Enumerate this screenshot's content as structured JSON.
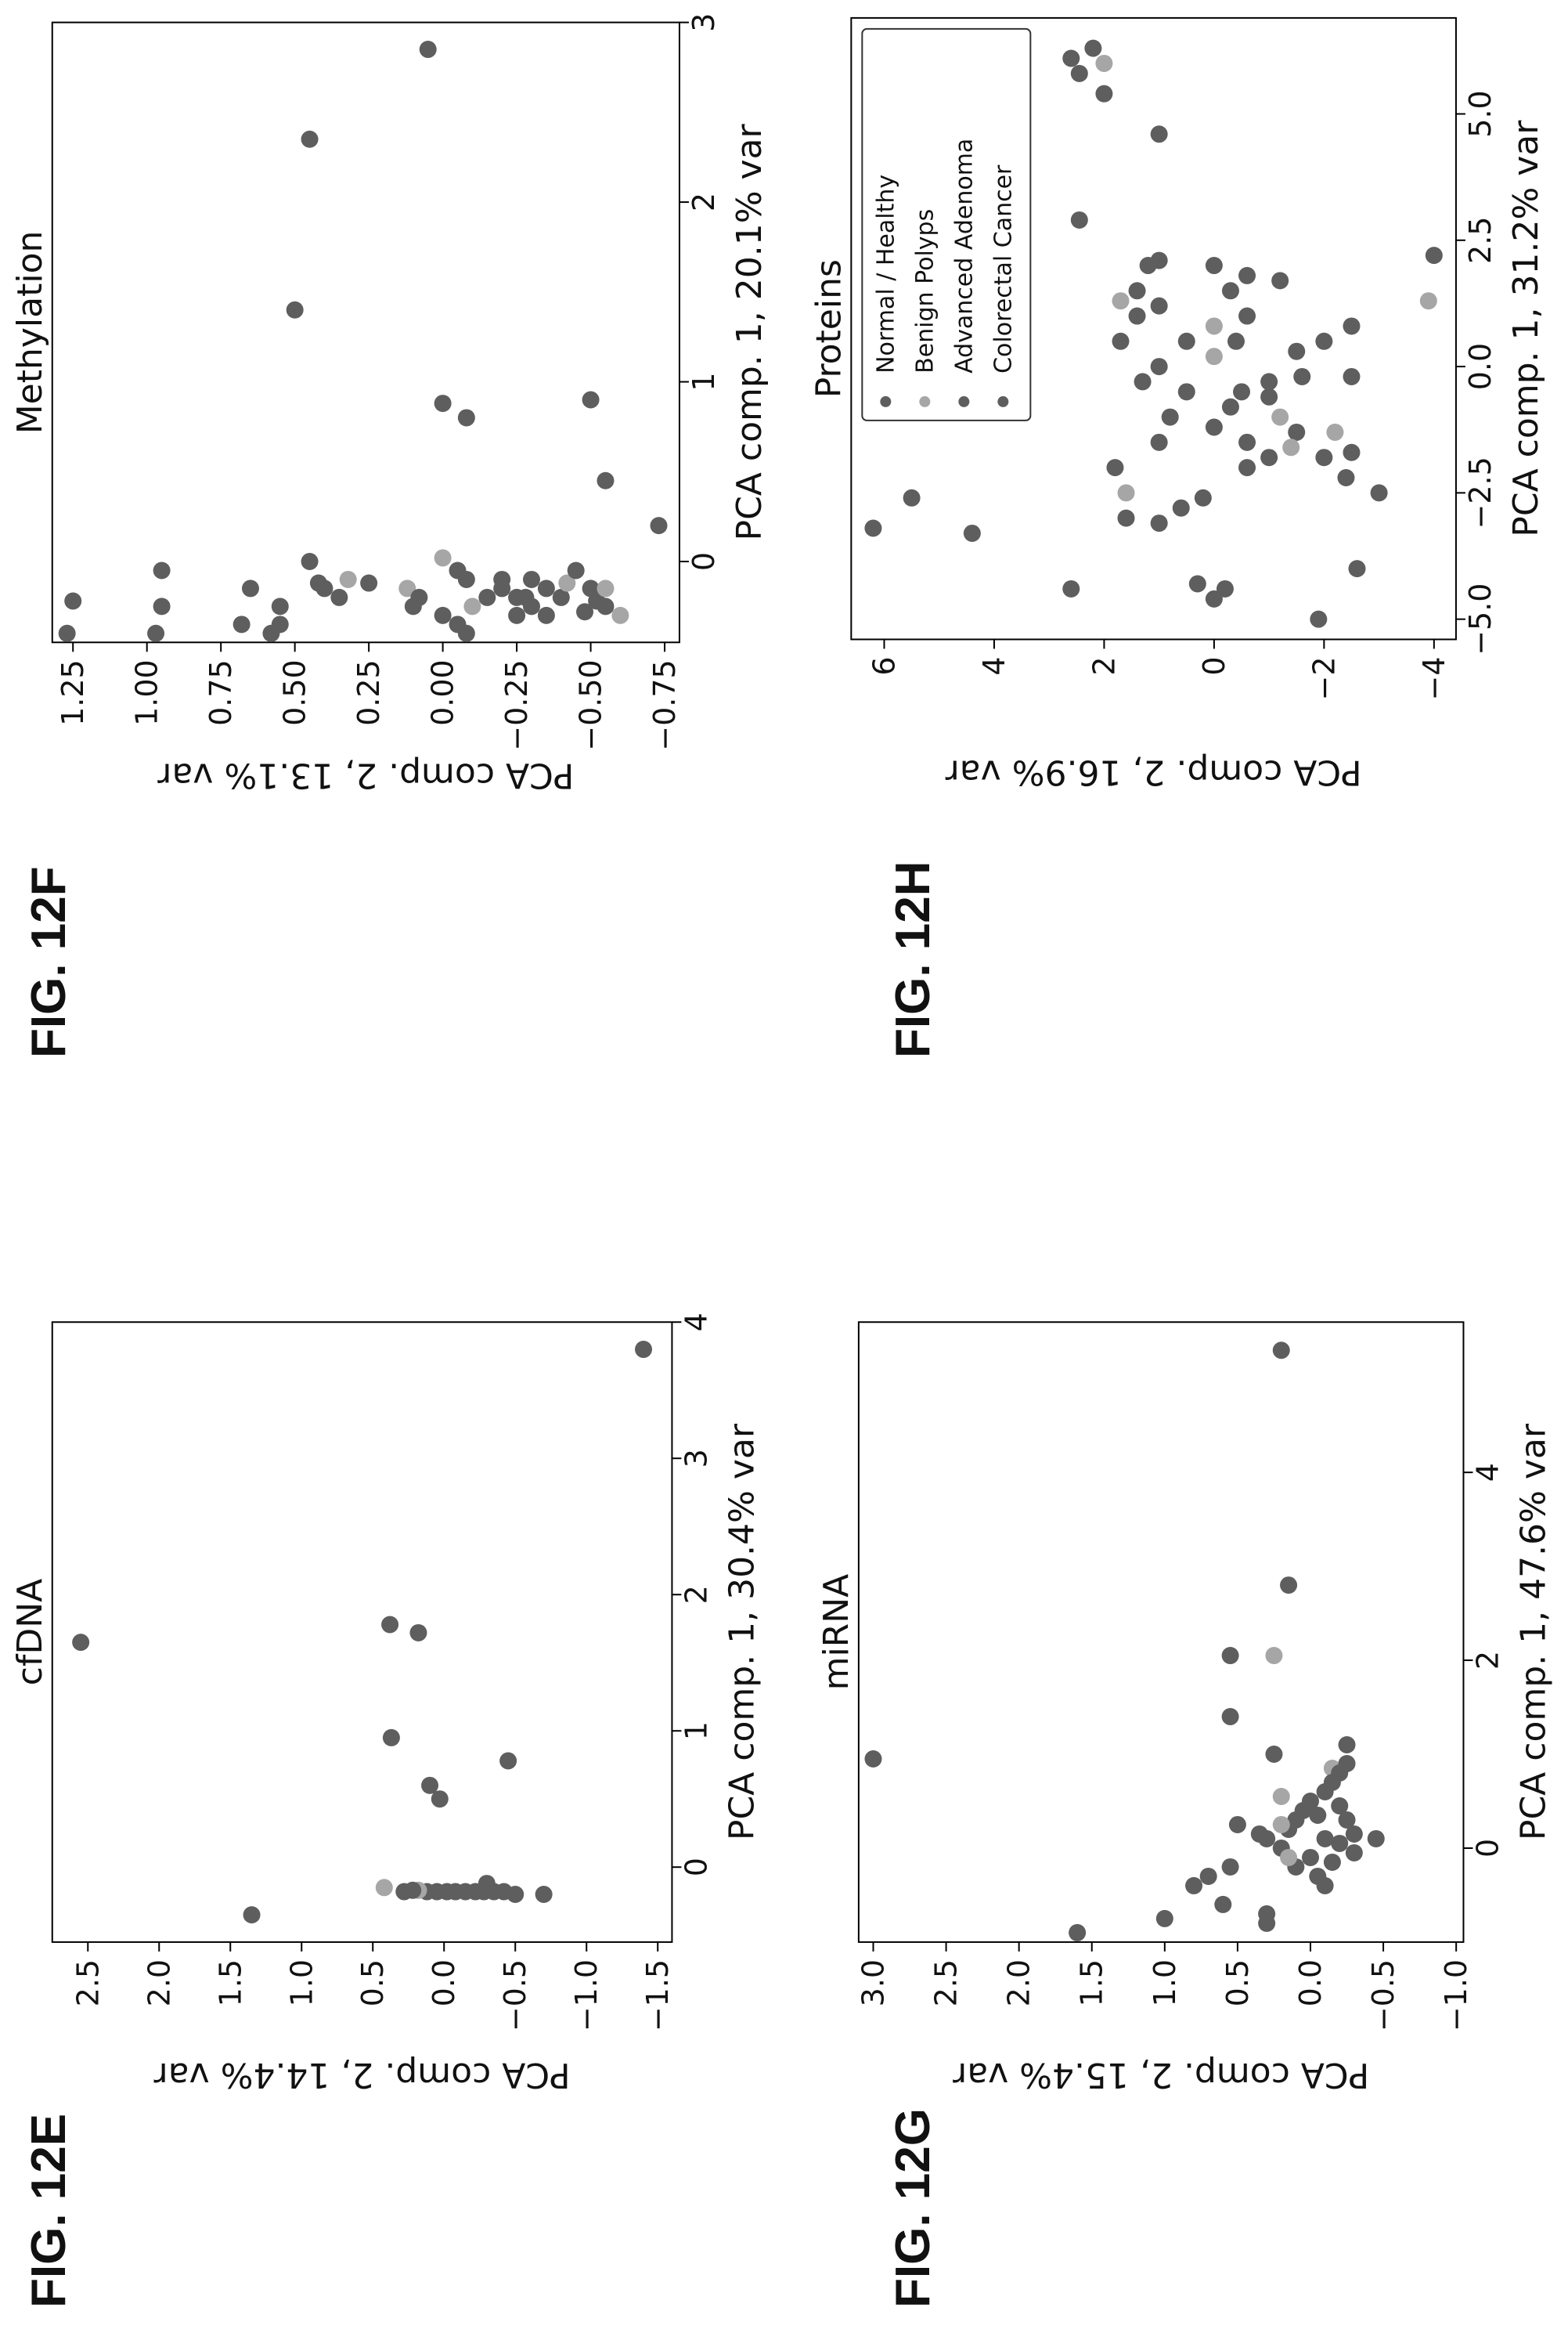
{
  "chart_data": [
    {
      "type": "scatter",
      "figure_label": "FIG. 12E",
      "title": "cfDNA",
      "xlabel": "PCA comp. 1, 30.4% var",
      "ylabel": "PCA comp. 2, 14.4% var",
      "xlim": [
        -0.55,
        4.0
      ],
      "ylim": [
        -1.6,
        2.75
      ],
      "xticks": [
        0,
        1,
        2,
        3,
        4
      ],
      "yticks": [
        2.5,
        2.0,
        1.5,
        1.0,
        0.5,
        0.0,
        -0.5,
        -1.0,
        -1.5
      ],
      "ytick_labels": [
        "2.5",
        "2.0",
        "1.5",
        "1.0",
        "0.5",
        "0.0",
        "−0.5",
        "−1.0",
        "−1.5"
      ],
      "xtick_labels": [
        "0",
        "1",
        "2",
        "3",
        "4"
      ],
      "grid": false,
      "points": [
        {
          "x": 1.65,
          "y": 2.55,
          "c": "dark"
        },
        {
          "x": 3.8,
          "y": -1.4,
          "c": "dark"
        },
        {
          "x": -0.35,
          "y": 1.35,
          "c": "dark"
        },
        {
          "x": 1.78,
          "y": 0.38,
          "c": "dark"
        },
        {
          "x": 1.72,
          "y": 0.18,
          "c": "dark"
        },
        {
          "x": 0.95,
          "y": 0.37,
          "c": "dark"
        },
        {
          "x": 0.6,
          "y": 0.1,
          "c": "dark"
        },
        {
          "x": 0.5,
          "y": 0.03,
          "c": "dark"
        },
        {
          "x": 0.78,
          "y": -0.45,
          "c": "dark"
        },
        {
          "x": -0.15,
          "y": 0.42,
          "c": "light"
        },
        {
          "x": -0.18,
          "y": 0.28,
          "c": "dark"
        },
        {
          "x": -0.12,
          "y": -0.3,
          "c": "dark"
        },
        {
          "x": -0.2,
          "y": -0.5,
          "c": "dark"
        },
        {
          "x": -0.2,
          "y": -0.7,
          "c": "dark"
        },
        {
          "x": -0.18,
          "y": 0.12,
          "c": "dark"
        },
        {
          "x": -0.18,
          "y": 0.05,
          "c": "dark"
        },
        {
          "x": -0.18,
          "y": -0.02,
          "c": "dark"
        },
        {
          "x": -0.18,
          "y": -0.08,
          "c": "dark"
        },
        {
          "x": -0.18,
          "y": -0.15,
          "c": "dark"
        },
        {
          "x": -0.18,
          "y": -0.22,
          "c": "dark"
        },
        {
          "x": -0.18,
          "y": -0.28,
          "c": "dark"
        },
        {
          "x": -0.17,
          "y": 0.18,
          "c": "light"
        },
        {
          "x": -0.18,
          "y": -0.35,
          "c": "dark"
        },
        {
          "x": -0.18,
          "y": -0.42,
          "c": "dark"
        },
        {
          "x": -0.17,
          "y": 0.22,
          "c": "dark"
        }
      ]
    },
    {
      "type": "scatter",
      "figure_label": "FIG. 12F",
      "title": "Methylation",
      "xlabel": "PCA comp. 1, 20.1% var",
      "ylabel": "PCA comp. 2, 13.1% var",
      "xlim": [
        -0.45,
        3.0
      ],
      "ylim": [
        -0.8,
        1.32
      ],
      "xticks": [
        0,
        1,
        2,
        3
      ],
      "yticks": [
        1.25,
        1.0,
        0.75,
        0.5,
        0.25,
        0.0,
        -0.25,
        -0.5,
        -0.75
      ],
      "ytick_labels": [
        "1.25",
        "1.00",
        "0.75",
        "0.50",
        "0.25",
        "0.00",
        "−0.25",
        "−0.50",
        "−0.75"
      ],
      "xtick_labels": [
        "0",
        "1",
        "2",
        "3"
      ],
      "grid": false,
      "points": [
        {
          "x": 2.85,
          "y": 0.05,
          "c": "dark"
        },
        {
          "x": 2.35,
          "y": 0.45,
          "c": "dark"
        },
        {
          "x": 1.4,
          "y": 0.5,
          "c": "dark"
        },
        {
          "x": 0.88,
          "y": 0.0,
          "c": "dark"
        },
        {
          "x": 0.8,
          "y": -0.08,
          "c": "dark"
        },
        {
          "x": 0.9,
          "y": -0.5,
          "c": "dark"
        },
        {
          "x": 0.45,
          "y": -0.55,
          "c": "dark"
        },
        {
          "x": 0.2,
          "y": -0.73,
          "c": "dark"
        },
        {
          "x": -0.22,
          "y": 1.25,
          "c": "dark"
        },
        {
          "x": -0.4,
          "y": 1.27,
          "c": "dark"
        },
        {
          "x": -0.05,
          "y": 0.95,
          "c": "dark"
        },
        {
          "x": -0.25,
          "y": 0.95,
          "c": "dark"
        },
        {
          "x": -0.4,
          "y": 0.97,
          "c": "dark"
        },
        {
          "x": -0.35,
          "y": 0.68,
          "c": "dark"
        },
        {
          "x": -0.15,
          "y": 0.65,
          "c": "dark"
        },
        {
          "x": -0.4,
          "y": 0.58,
          "c": "dark"
        },
        {
          "x": -0.35,
          "y": 0.55,
          "c": "dark"
        },
        {
          "x": -0.25,
          "y": 0.55,
          "c": "dark"
        },
        {
          "x": 0.0,
          "y": 0.45,
          "c": "dark"
        },
        {
          "x": -0.12,
          "y": 0.42,
          "c": "dark"
        },
        {
          "x": -0.15,
          "y": 0.4,
          "c": "dark"
        },
        {
          "x": -0.2,
          "y": 0.35,
          "c": "dark"
        },
        {
          "x": -0.1,
          "y": 0.32,
          "c": "light"
        },
        {
          "x": -0.12,
          "y": 0.25,
          "c": "dark"
        },
        {
          "x": -0.15,
          "y": 0.12,
          "c": "light"
        },
        {
          "x": -0.25,
          "y": 0.1,
          "c": "dark"
        },
        {
          "x": -0.2,
          "y": 0.08,
          "c": "dark"
        },
        {
          "x": -0.3,
          "y": 0.0,
          "c": "dark"
        },
        {
          "x": 0.02,
          "y": 0.0,
          "c": "light"
        },
        {
          "x": -0.05,
          "y": -0.05,
          "c": "dark"
        },
        {
          "x": -0.1,
          "y": -0.08,
          "c": "dark"
        },
        {
          "x": -0.2,
          "y": -0.15,
          "c": "dark"
        },
        {
          "x": -0.25,
          "y": -0.1,
          "c": "light"
        },
        {
          "x": -0.35,
          "y": -0.05,
          "c": "dark"
        },
        {
          "x": -0.4,
          "y": -0.08,
          "c": "dark"
        },
        {
          "x": -0.15,
          "y": -0.2,
          "c": "dark"
        },
        {
          "x": -0.2,
          "y": -0.25,
          "c": "dark"
        },
        {
          "x": -0.3,
          "y": -0.25,
          "c": "dark"
        },
        {
          "x": -0.1,
          "y": -0.3,
          "c": "dark"
        },
        {
          "x": -0.25,
          "y": -0.3,
          "c": "dark"
        },
        {
          "x": -0.15,
          "y": -0.35,
          "c": "dark"
        },
        {
          "x": -0.3,
          "y": -0.35,
          "c": "dark"
        },
        {
          "x": -0.2,
          "y": -0.4,
          "c": "dark"
        },
        {
          "x": -0.12,
          "y": -0.42,
          "c": "light"
        },
        {
          "x": -0.05,
          "y": -0.45,
          "c": "dark"
        },
        {
          "x": -0.15,
          "y": -0.5,
          "c": "dark"
        },
        {
          "x": -0.22,
          "y": -0.52,
          "c": "dark"
        },
        {
          "x": -0.28,
          "y": -0.48,
          "c": "dark"
        },
        {
          "x": -0.15,
          "y": -0.55,
          "c": "light"
        },
        {
          "x": -0.25,
          "y": -0.55,
          "c": "dark"
        },
        {
          "x": -0.3,
          "y": -0.6,
          "c": "light"
        },
        {
          "x": -0.2,
          "y": -0.28,
          "c": "dark"
        },
        {
          "x": -0.1,
          "y": -0.2,
          "c": "dark"
        }
      ]
    },
    {
      "type": "scatter",
      "figure_label": "FIG. 12G",
      "title": "miRNA",
      "xlabel": "PCA comp. 1, 47.6% var",
      "ylabel": "PCA comp. 2, 15.4% var",
      "xlim": [
        -1.0,
        5.6
      ],
      "ylim": [
        -1.05,
        3.1
      ],
      "xticks": [
        0,
        2,
        4
      ],
      "yticks": [
        3.0,
        2.5,
        2.0,
        1.5,
        1.0,
        0.5,
        0.0,
        -0.5,
        -1.0
      ],
      "ytick_labels": [
        "3.0",
        "2.5",
        "2.0",
        "1.5",
        "1.0",
        "0.5",
        "0.0",
        "−0.5",
        "−1.0"
      ],
      "xtick_labels": [
        "0",
        "2",
        "4"
      ],
      "grid": false,
      "points": [
        {
          "x": 0.95,
          "y": 3.0,
          "c": "dark"
        },
        {
          "x": 5.3,
          "y": 0.2,
          "c": "dark"
        },
        {
          "x": 2.8,
          "y": 0.15,
          "c": "dark"
        },
        {
          "x": 2.05,
          "y": 0.55,
          "c": "dark"
        },
        {
          "x": 2.05,
          "y": 0.25,
          "c": "light"
        },
        {
          "x": 1.4,
          "y": 0.55,
          "c": "dark"
        },
        {
          "x": 1.0,
          "y": 0.25,
          "c": "dark"
        },
        {
          "x": 0.85,
          "y": -0.15,
          "c": "light"
        },
        {
          "x": 0.55,
          "y": 0.2,
          "c": "light"
        },
        {
          "x": -0.9,
          "y": 1.6,
          "c": "dark"
        },
        {
          "x": -0.75,
          "y": 1.0,
          "c": "dark"
        },
        {
          "x": -0.4,
          "y": 0.8,
          "c": "dark"
        },
        {
          "x": -0.3,
          "y": 0.7,
          "c": "dark"
        },
        {
          "x": -0.2,
          "y": 0.55,
          "c": "dark"
        },
        {
          "x": -0.6,
          "y": 0.6,
          "c": "dark"
        },
        {
          "x": -0.7,
          "y": 0.3,
          "c": "dark"
        },
        {
          "x": -0.8,
          "y": 0.3,
          "c": "dark"
        },
        {
          "x": 0.25,
          "y": 0.5,
          "c": "dark"
        },
        {
          "x": 0.1,
          "y": 0.3,
          "c": "dark"
        },
        {
          "x": 0.0,
          "y": 0.2,
          "c": "dark"
        },
        {
          "x": 0.2,
          "y": 0.15,
          "c": "dark"
        },
        {
          "x": 0.3,
          "y": 0.1,
          "c": "dark"
        },
        {
          "x": 0.4,
          "y": 0.05,
          "c": "dark"
        },
        {
          "x": 0.5,
          "y": 0.0,
          "c": "dark"
        },
        {
          "x": 0.6,
          "y": -0.1,
          "c": "dark"
        },
        {
          "x": 0.7,
          "y": -0.15,
          "c": "dark"
        },
        {
          "x": 0.8,
          "y": -0.2,
          "c": "dark"
        },
        {
          "x": 0.9,
          "y": -0.25,
          "c": "dark"
        },
        {
          "x": 1.1,
          "y": -0.25,
          "c": "dark"
        },
        {
          "x": 0.1,
          "y": -0.1,
          "c": "dark"
        },
        {
          "x": -0.1,
          "y": 0.0,
          "c": "dark"
        },
        {
          "x": -0.2,
          "y": 0.1,
          "c": "dark"
        },
        {
          "x": -0.3,
          "y": -0.05,
          "c": "dark"
        },
        {
          "x": -0.15,
          "y": -0.15,
          "c": "dark"
        },
        {
          "x": 0.05,
          "y": -0.2,
          "c": "dark"
        },
        {
          "x": 0.15,
          "y": -0.3,
          "c": "dark"
        },
        {
          "x": 0.3,
          "y": -0.25,
          "c": "dark"
        },
        {
          "x": 0.45,
          "y": -0.2,
          "c": "dark"
        },
        {
          "x": -0.05,
          "y": -0.3,
          "c": "dark"
        },
        {
          "x": -0.4,
          "y": -0.1,
          "c": "dark"
        },
        {
          "x": 0.25,
          "y": 0.2,
          "c": "light"
        },
        {
          "x": -0.1,
          "y": 0.15,
          "c": "light"
        },
        {
          "x": 0.1,
          "y": -0.45,
          "c": "dark"
        },
        {
          "x": 0.35,
          "y": -0.05,
          "c": "dark"
        },
        {
          "x": 0.15,
          "y": 0.35,
          "c": "dark"
        }
      ]
    },
    {
      "type": "scatter",
      "figure_label": "FIG. 12H",
      "title": "Proteins",
      "xlabel": "PCA comp. 1, 31.2% var",
      "ylabel": "PCA comp. 2, 16.9% var",
      "xlim": [
        -5.4,
        6.9
      ],
      "ylim": [
        -4.4,
        6.6
      ],
      "xticks": [
        -5.0,
        -2.5,
        0.0,
        2.5,
        5.0
      ],
      "yticks": [
        6,
        4,
        2,
        0,
        -2,
        -4
      ],
      "ytick_labels": [
        "6",
        "4",
        "2",
        "0",
        "−2",
        "−4"
      ],
      "xtick_labels": [
        "−5.0",
        "−2.5",
        "0.0",
        "2.5",
        "5.0"
      ],
      "grid": false,
      "legend": {
        "position": "top-left",
        "entries": [
          "Normal / Healthy",
          "Benign Polyps",
          "Advanced Adenoma",
          "Colorectal Cancer"
        ]
      },
      "points": [
        {
          "x": 6.3,
          "y": 2.2,
          "c": "dark"
        },
        {
          "x": 6.1,
          "y": 2.6,
          "c": "dark"
        },
        {
          "x": 5.8,
          "y": 2.45,
          "c": "dark"
        },
        {
          "x": 6.0,
          "y": 2.0,
          "c": "light"
        },
        {
          "x": 5.4,
          "y": 2.0,
          "c": "dark"
        },
        {
          "x": 4.6,
          "y": 1.0,
          "c": "dark"
        },
        {
          "x": 2.9,
          "y": 2.45,
          "c": "dark"
        },
        {
          "x": -3.2,
          "y": 6.2,
          "c": "dark"
        },
        {
          "x": -2.6,
          "y": 5.5,
          "c": "dark"
        },
        {
          "x": -3.3,
          "y": 4.4,
          "c": "dark"
        },
        {
          "x": -4.4,
          "y": 2.6,
          "c": "dark"
        },
        {
          "x": -5.0,
          "y": -1.9,
          "c": "dark"
        },
        {
          "x": -4.3,
          "y": 0.3,
          "c": "dark"
        },
        {
          "x": -4.6,
          "y": 0.0,
          "c": "dark"
        },
        {
          "x": -4.4,
          "y": -0.2,
          "c": "dark"
        },
        {
          "x": -2.0,
          "y": 1.8,
          "c": "dark"
        },
        {
          "x": -2.5,
          "y": 1.6,
          "c": "light"
        },
        {
          "x": -3.1,
          "y": 1.0,
          "c": "dark"
        },
        {
          "x": -3.0,
          "y": 1.6,
          "c": "dark"
        },
        {
          "x": -2.5,
          "y": -3.0,
          "c": "dark"
        },
        {
          "x": -4.0,
          "y": -2.6,
          "c": "dark"
        },
        {
          "x": -1.8,
          "y": -2.0,
          "c": "dark"
        },
        {
          "x": -2.2,
          "y": -2.4,
          "c": "dark"
        },
        {
          "x": -1.3,
          "y": -1.5,
          "c": "dark"
        },
        {
          "x": -1.0,
          "y": -1.2,
          "c": "light"
        },
        {
          "x": -1.6,
          "y": -1.4,
          "c": "light"
        },
        {
          "x": 0.2,
          "y": 0.0,
          "c": "light"
        },
        {
          "x": 0.8,
          "y": 0.0,
          "c": "light"
        },
        {
          "x": 1.2,
          "y": 1.0,
          "c": "dark"
        },
        {
          "x": 2.1,
          "y": 1.0,
          "c": "dark"
        },
        {
          "x": 2.0,
          "y": 0.0,
          "c": "dark"
        },
        {
          "x": 1.8,
          "y": -0.6,
          "c": "dark"
        },
        {
          "x": 1.5,
          "y": -0.3,
          "c": "dark"
        },
        {
          "x": 1.0,
          "y": -0.6,
          "c": "dark"
        },
        {
          "x": 0.5,
          "y": -0.4,
          "c": "dark"
        },
        {
          "x": -0.5,
          "y": -0.5,
          "c": "dark"
        },
        {
          "x": -0.8,
          "y": -0.3,
          "c": "dark"
        },
        {
          "x": -1.5,
          "y": -0.6,
          "c": "dark"
        },
        {
          "x": -2.0,
          "y": -0.6,
          "c": "dark"
        },
        {
          "x": -1.8,
          "y": -1.0,
          "c": "dark"
        },
        {
          "x": 0.0,
          "y": 1.0,
          "c": "dark"
        },
        {
          "x": 0.5,
          "y": 0.5,
          "c": "dark"
        },
        {
          "x": -0.5,
          "y": 0.5,
          "c": "dark"
        },
        {
          "x": -1.0,
          "y": 0.8,
          "c": "dark"
        },
        {
          "x": -0.3,
          "y": -1.0,
          "c": "dark"
        },
        {
          "x": 0.3,
          "y": -1.5,
          "c": "dark"
        },
        {
          "x": -0.6,
          "y": -1.0,
          "c": "dark"
        },
        {
          "x": 1.0,
          "y": 1.4,
          "c": "dark"
        },
        {
          "x": 1.5,
          "y": 1.4,
          "c": "dark"
        },
        {
          "x": 0.5,
          "y": 1.7,
          "c": "dark"
        },
        {
          "x": 2.0,
          "y": 1.2,
          "c": "dark"
        },
        {
          "x": -2.8,
          "y": 0.6,
          "c": "dark"
        },
        {
          "x": -2.6,
          "y": 0.2,
          "c": "dark"
        },
        {
          "x": -1.2,
          "y": 0.0,
          "c": "dark"
        },
        {
          "x": 0.8,
          "y": -2.5,
          "c": "dark"
        },
        {
          "x": -0.2,
          "y": -2.5,
          "c": "dark"
        },
        {
          "x": -0.2,
          "y": -1.6,
          "c": "dark"
        },
        {
          "x": 1.3,
          "y": 1.7,
          "c": "light"
        },
        {
          "x": 2.2,
          "y": -4.0,
          "c": "dark"
        },
        {
          "x": 1.3,
          "y": -3.9,
          "c": "light"
        },
        {
          "x": -1.3,
          "y": -2.2,
          "c": "light"
        },
        {
          "x": -1.7,
          "y": -2.5,
          "c": "dark"
        },
        {
          "x": 0.5,
          "y": -2.0,
          "c": "dark"
        },
        {
          "x": -0.3,
          "y": 1.3,
          "c": "dark"
        },
        {
          "x": -1.5,
          "y": 1.0,
          "c": "dark"
        },
        {
          "x": 1.7,
          "y": -1.2,
          "c": "dark"
        }
      ]
    }
  ],
  "colors": {
    "dark": "#5e5e5e",
    "light": "#a6a6a6",
    "axis": "#000000"
  }
}
